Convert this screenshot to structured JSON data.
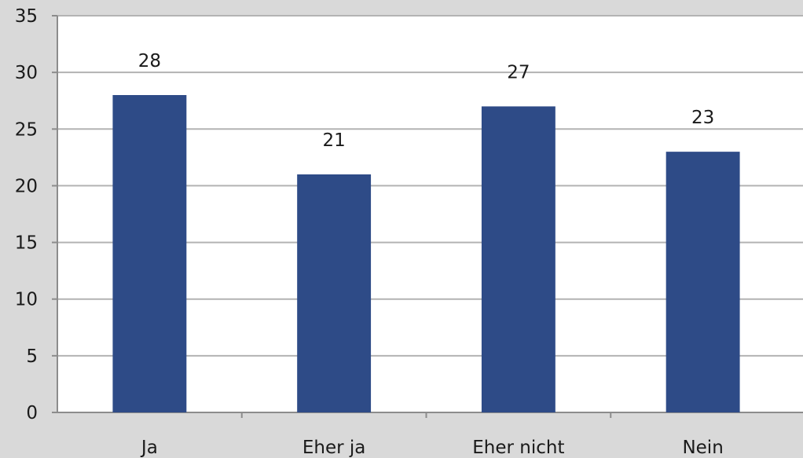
{
  "chart_data": {
    "type": "bar",
    "categories": [
      "Ja",
      "Eher ja",
      "Eher nicht",
      "Nein"
    ],
    "values": [
      28,
      21,
      27,
      23
    ],
    "data_labels": [
      "28",
      "21",
      "27",
      "23"
    ],
    "title": "",
    "xlabel": "",
    "ylabel": "",
    "ylim": [
      0,
      35
    ],
    "yticks": [
      0,
      5,
      10,
      15,
      20,
      25,
      30,
      35
    ],
    "grid": true,
    "legend": "none",
    "colors": {
      "bar": "#2e4b87",
      "plot_background": "#ffffff",
      "page_background": "#d9d9d9",
      "gridline": "#b3b3b3",
      "axis": "#8c8c8c"
    }
  }
}
